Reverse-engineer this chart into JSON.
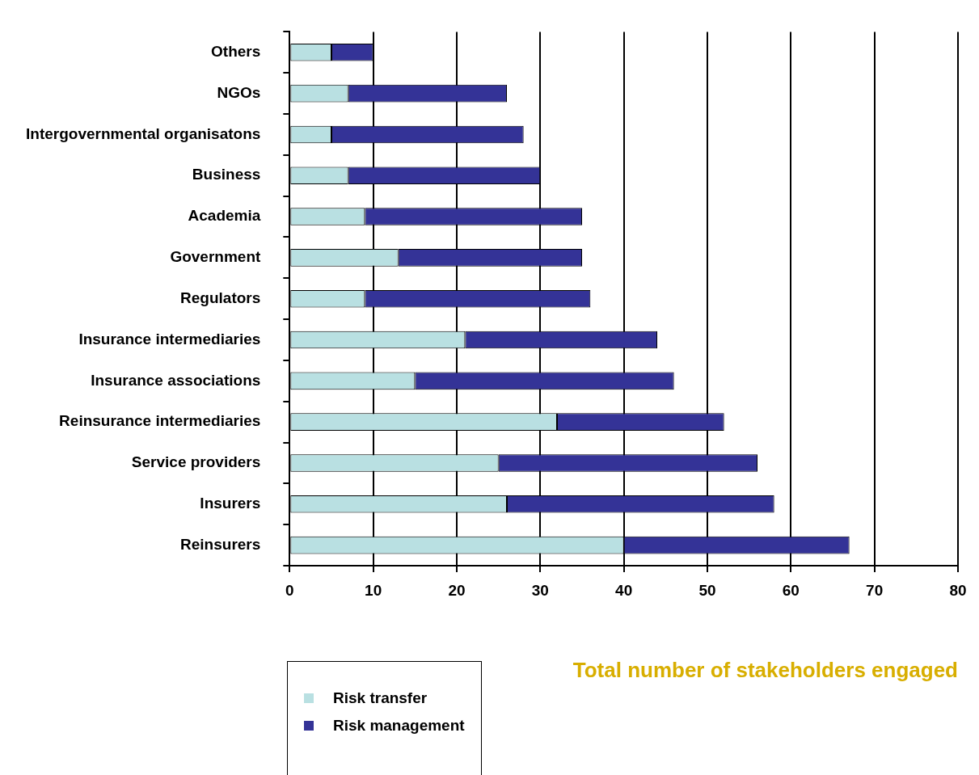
{
  "chart_data": {
    "type": "bar",
    "orientation": "horizontal",
    "stacked": true,
    "xlabel": "Total number of stakeholders engaged",
    "categories": [
      "Others",
      "NGOs",
      "Intergovernmental organisatons",
      "Business",
      "Academia",
      "Government",
      "Regulators",
      "Insurance intermediaries",
      "Insurance associations",
      "Reinsurance intermediaries",
      "Service providers",
      "Insurers",
      "Reinsurers"
    ],
    "series": [
      {
        "name": "Risk transfer",
        "color": "#b9e0e2",
        "values": [
          5,
          7,
          5,
          7,
          9,
          13,
          9,
          21,
          15,
          32,
          25,
          26,
          40
        ]
      },
      {
        "name": "Risk management",
        "color": "#343397",
        "values": [
          5,
          19,
          23,
          23,
          26,
          22,
          27,
          23,
          31,
          20,
          31,
          32,
          27
        ]
      }
    ],
    "xlim": [
      0,
      80
    ],
    "xticks": [
      0,
      10,
      20,
      30,
      40,
      50,
      60,
      70,
      80
    ],
    "grid": "x",
    "legend": "bottom left"
  }
}
